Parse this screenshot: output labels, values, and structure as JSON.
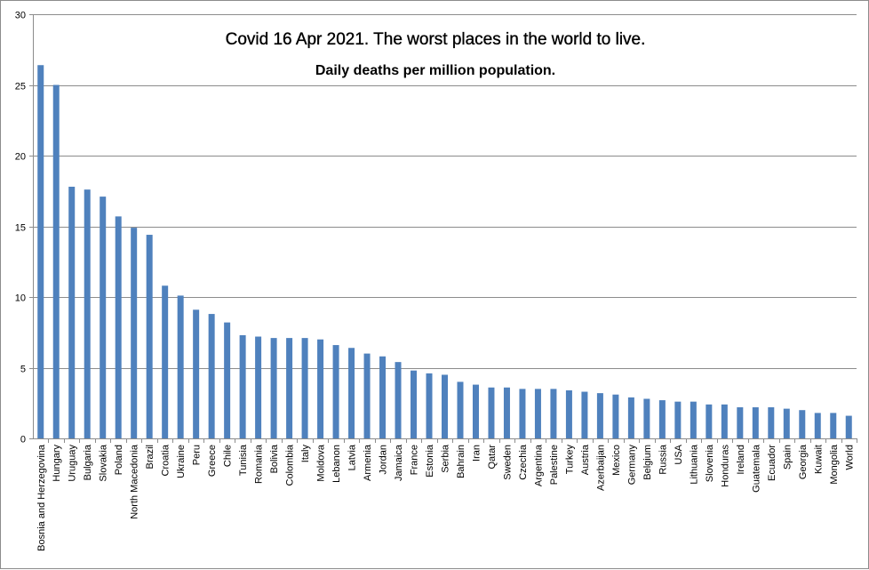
{
  "chart_data": {
    "type": "bar",
    "title": "Covid 16 Apr 2021. The worst places in the world to live.",
    "subtitle": "Daily deaths per million population.",
    "xlabel": "",
    "ylabel": "",
    "ylim": [
      0,
      30
    ],
    "yticks": [
      0,
      5,
      10,
      15,
      20,
      25,
      30
    ],
    "grid": "horizontal",
    "legend": "none",
    "bar_color": "#4f81bd",
    "grid_color": "#8c8c8c",
    "categories": [
      "Bosnia and Herzegovina",
      "Hungary",
      "Uruguay",
      "Bulgaria",
      "Slovakia",
      "Poland",
      "North Macedonia",
      "Brazil",
      "Croatia",
      "Ukraine",
      "Peru",
      "Greece",
      "Chile",
      "Tunisia",
      "Romania",
      "Bolivia",
      "Colombia",
      "Italy",
      "Moldova",
      "Lebanon",
      "Latvia",
      "Armenia",
      "Jordan",
      "Jamaica",
      "France",
      "Estonia",
      "Serbia",
      "Bahrain",
      "Iran",
      "Qatar",
      "Sweden",
      "Czechia",
      "Argentina",
      "Palestine",
      "Turkey",
      "Austria",
      "Azerbaijan",
      "Mexico",
      "Germany",
      "Belgium",
      "Russia",
      "USA",
      "Lithuania",
      "Slovenia",
      "Honduras",
      "Ireland",
      "Guatemala",
      "Ecuador",
      "Spain",
      "Georgia",
      "Kuwait",
      "Mongolia",
      "World"
    ],
    "values": [
      26.4,
      25.0,
      17.8,
      17.6,
      17.1,
      15.7,
      14.9,
      14.4,
      10.8,
      10.1,
      9.1,
      8.8,
      8.2,
      7.3,
      7.2,
      7.1,
      7.1,
      7.1,
      7.0,
      6.6,
      6.4,
      6.0,
      5.8,
      5.4,
      4.8,
      4.6,
      4.5,
      4.0,
      3.8,
      3.6,
      3.6,
      3.5,
      3.5,
      3.5,
      3.4,
      3.3,
      3.2,
      3.1,
      2.9,
      2.8,
      2.7,
      2.6,
      2.6,
      2.4,
      2.4,
      2.2,
      2.2,
      2.2,
      2.1,
      2.0,
      1.8,
      1.8,
      1.6
    ]
  }
}
